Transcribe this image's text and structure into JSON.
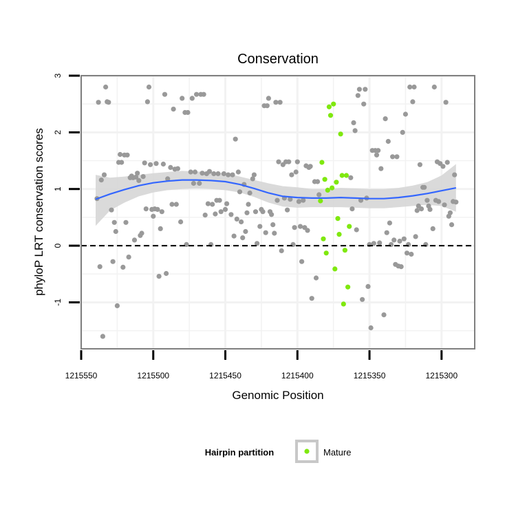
{
  "chart_data": {
    "type": "scatter",
    "title": "Conservation",
    "xlabel": "Genomic Position",
    "ylabel": "phyloP LRT conservation scores",
    "xlim": [
      1215550,
      1215277
    ],
    "x_reversed": true,
    "ylim": [
      -1.82,
      3.0
    ],
    "x_ticks": [
      1215550,
      1215500,
      1215450,
      1215400,
      1215350,
      1215300
    ],
    "x_tick_labels": [
      "1215550",
      "1215500",
      "1215450",
      "1215400",
      "1215350",
      "1215300"
    ],
    "y_ticks": [
      -1,
      0,
      1,
      2,
      3
    ],
    "y_tick_labels": [
      "-1",
      "0",
      "1",
      "2",
      "3"
    ],
    "grid": true,
    "reference_line": {
      "y": 0,
      "style": "dashed",
      "color": "#000000"
    },
    "colors": {
      "other": "#999999",
      "mature": "#7FE80E",
      "smooth": "#3366FF",
      "band": "#D6D6D6",
      "panel_border": "#7F7F7F",
      "grid": "#F2F2F2"
    },
    "legend": {
      "title": "Hairpin partition",
      "position": "bottom",
      "entries": [
        {
          "label": "Mature",
          "color": "#7FE80E"
        }
      ]
    },
    "smooth_fit": {
      "x": [
        1215540,
        1215530,
        1215520,
        1215510,
        1215500,
        1215490,
        1215480,
        1215470,
        1215460,
        1215450,
        1215440,
        1215430,
        1215420,
        1215410,
        1215400,
        1215390,
        1215380,
        1215370,
        1215360,
        1215350,
        1215340,
        1215330,
        1215320,
        1215310,
        1215300,
        1215290
      ],
      "y": [
        0.82,
        0.91,
        0.99,
        1.06,
        1.11,
        1.14,
        1.16,
        1.16,
        1.15,
        1.13,
        1.08,
        1.01,
        0.93,
        0.87,
        0.85,
        0.84,
        0.84,
        0.85,
        0.84,
        0.83,
        0.83,
        0.85,
        0.88,
        0.92,
        0.97,
        1.02
      ],
      "lower": [
        0.35,
        0.62,
        0.76,
        0.87,
        0.94,
        0.98,
        1.0,
        1.01,
        1.0,
        0.98,
        0.94,
        0.86,
        0.76,
        0.69,
        0.67,
        0.68,
        0.68,
        0.68,
        0.67,
        0.66,
        0.66,
        0.68,
        0.7,
        0.72,
        0.7,
        0.6
      ],
      "upper": [
        1.25,
        1.2,
        1.22,
        1.25,
        1.28,
        1.3,
        1.32,
        1.31,
        1.3,
        1.28,
        1.22,
        1.16,
        1.1,
        1.05,
        1.03,
        1.0,
        1.0,
        1.02,
        1.01,
        1.0,
        1.0,
        1.02,
        1.06,
        1.12,
        1.24,
        1.44
      ]
    },
    "series": [
      {
        "name": "",
        "color": "#999999",
        "points": [
          [
            1215539,
            0.83
          ],
          [
            1215538,
            2.53
          ],
          [
            1215537,
            -0.37
          ],
          [
            1215536,
            1.16
          ],
          [
            1215535,
            -1.6
          ],
          [
            1215534,
            1.25
          ],
          [
            1215533,
            2.8
          ],
          [
            1215532,
            2.54
          ],
          [
            1215531,
            2.53
          ],
          [
            1215529,
            0.63
          ],
          [
            1215528,
            -0.28
          ],
          [
            1215527,
            0.41
          ],
          [
            1215526,
            0.25
          ],
          [
            1215525,
            -1.06
          ],
          [
            1215524,
            1.47
          ],
          [
            1215523,
            1.61
          ],
          [
            1215522,
            1.47
          ],
          [
            1215521,
            -0.38
          ],
          [
            1215520,
            1.6
          ],
          [
            1215519,
            0.41
          ],
          [
            1215518,
            1.6
          ],
          [
            1215517,
            -0.2
          ],
          [
            1215516,
            1.2
          ],
          [
            1215515,
            1.23
          ],
          [
            1215514,
            1.2
          ],
          [
            1215513,
            0.1
          ],
          [
            1215512,
            1.21
          ],
          [
            1215511,
            1.28
          ],
          [
            1215510,
            1.15
          ],
          [
            1215509,
            0.18
          ],
          [
            1215508,
            0.22
          ],
          [
            1215507,
            1.22
          ],
          [
            1215506,
            1.46
          ],
          [
            1215505,
            0.65
          ],
          [
            1215504,
            2.54
          ],
          [
            1215503,
            2.8
          ],
          [
            1215502,
            1.43
          ],
          [
            1215501,
            0.64
          ],
          [
            1215500,
            0.52
          ],
          [
            1215499,
            0.65
          ],
          [
            1215498,
            1.45
          ],
          [
            1215497,
            0.64
          ],
          [
            1215496,
            -0.54
          ],
          [
            1215495,
            0.3
          ],
          [
            1215494,
            0.6
          ],
          [
            1215493,
            1.44
          ],
          [
            1215492,
            2.67
          ],
          [
            1215491,
            -0.49
          ],
          [
            1215490,
            1.18
          ],
          [
            1215488,
            1.38
          ],
          [
            1215487,
            0.73
          ],
          [
            1215486,
            2.41
          ],
          [
            1215485,
            1.35
          ],
          [
            1215484,
            0.73
          ],
          [
            1215483,
            1.36
          ],
          [
            1215481,
            0.42
          ],
          [
            1215480,
            2.6
          ],
          [
            1215478,
            2.35
          ],
          [
            1215477,
            0.02
          ],
          [
            1215476,
            2.35
          ],
          [
            1215474,
            1.3
          ],
          [
            1215473,
            2.6
          ],
          [
            1215472,
            1.1
          ],
          [
            1215471,
            1.3
          ],
          [
            1215470,
            2.67
          ],
          [
            1215468,
            1.1
          ],
          [
            1215467,
            2.67
          ],
          [
            1215466,
            1.28
          ],
          [
            1215465,
            2.67
          ],
          [
            1215464,
            0.54
          ],
          [
            1215463,
            1.27
          ],
          [
            1215462,
            0.74
          ],
          [
            1215461,
            1.31
          ],
          [
            1215460,
            0.02
          ],
          [
            1215459,
            0.73
          ],
          [
            1215458,
            1.27
          ],
          [
            1215457,
            0.56
          ],
          [
            1215456,
            0.8
          ],
          [
            1215455,
            1.27
          ],
          [
            1215454,
            0.8
          ],
          [
            1215453,
            0.6
          ],
          [
            1215451,
            1.27
          ],
          [
            1215450,
            0.64
          ],
          [
            1215449,
            0.74
          ],
          [
            1215448,
            1.25
          ],
          [
            1215446,
            0.55
          ],
          [
            1215445,
            1.25
          ],
          [
            1215444,
            0.17
          ],
          [
            1215443,
            1.88
          ],
          [
            1215442,
            0.47
          ],
          [
            1215441,
            1.3
          ],
          [
            1215440,
            0.95
          ],
          [
            1215439,
            0.42
          ],
          [
            1215438,
            0.14
          ],
          [
            1215437,
            1.08
          ],
          [
            1215436,
            0.25
          ],
          [
            1215435,
            0.58
          ],
          [
            1215434,
            0.73
          ],
          [
            1215433,
            0.93
          ],
          [
            1215431,
            1.18
          ],
          [
            1215430,
            1.25
          ],
          [
            1215429,
            0.6
          ],
          [
            1215428,
            0.04
          ],
          [
            1215426,
            0.34
          ],
          [
            1215425,
            0.64
          ],
          [
            1215424,
            0.6
          ],
          [
            1215423,
            2.47
          ],
          [
            1215422,
            0.23
          ],
          [
            1215421,
            2.47
          ],
          [
            1215420,
            2.6
          ],
          [
            1215419,
            0.6
          ],
          [
            1215418,
            0.55
          ],
          [
            1215417,
            0.37
          ],
          [
            1215416,
            0.22
          ],
          [
            1215415,
            2.53
          ],
          [
            1215414,
            0.8
          ],
          [
            1215413,
            1.48
          ],
          [
            1215412,
            2.53
          ],
          [
            1215411,
            -0.09
          ],
          [
            1215410,
            1.43
          ],
          [
            1215409,
            0.84
          ],
          [
            1215408,
            1.48
          ],
          [
            1215407,
            0.63
          ],
          [
            1215406,
            1.48
          ],
          [
            1215405,
            0.82
          ],
          [
            1215404,
            1.25
          ],
          [
            1215403,
            0.02
          ],
          [
            1215402,
            0.32
          ],
          [
            1215401,
            1.3
          ],
          [
            1215400,
            1.48
          ],
          [
            1215399,
            0.78
          ],
          [
            1215398,
            0.34
          ],
          [
            1215397,
            -0.28
          ],
          [
            1215396,
            0.8
          ],
          [
            1215395,
            0.32
          ],
          [
            1215394,
            1.41
          ],
          [
            1215393,
            0.27
          ],
          [
            1215392,
            1.38
          ],
          [
            1215391,
            1.4
          ],
          [
            1215390,
            -0.93
          ],
          [
            1215388,
            1.13
          ],
          [
            1215387,
            -0.57
          ],
          [
            1215386,
            1.13
          ],
          [
            1215385,
            0.9
          ]
        ]
      },
      {
        "name": "Mature",
        "color": "#7FE80E",
        "points": [
          [
            1215384,
            0.79
          ],
          [
            1215383,
            1.47
          ],
          [
            1215382,
            0.12
          ],
          [
            1215381,
            1.17
          ],
          [
            1215380,
            -0.13
          ],
          [
            1215379,
            0.98
          ],
          [
            1215378,
            2.45
          ],
          [
            1215377,
            2.3
          ],
          [
            1215376,
            1.02
          ],
          [
            1215375,
            2.5
          ],
          [
            1215374,
            -0.41
          ],
          [
            1215373,
            1.12
          ],
          [
            1215372,
            0.48
          ],
          [
            1215371,
            0.2
          ],
          [
            1215370,
            1.97
          ],
          [
            1215369,
            1.24
          ],
          [
            1215368,
            -1.03
          ],
          [
            1215367,
            -0.08
          ],
          [
            1215366,
            1.24
          ],
          [
            1215365,
            -0.73
          ],
          [
            1215364,
            0.34
          ]
        ]
      },
      {
        "name": "",
        "color": "#999999",
        "points": [
          [
            1215363,
            1.2
          ],
          [
            1215362,
            0.65
          ],
          [
            1215361,
            2.17
          ],
          [
            1215360,
            2.03
          ],
          [
            1215359,
            0.28
          ],
          [
            1215358,
            2.65
          ],
          [
            1215357,
            2.76
          ],
          [
            1215356,
            0.8
          ],
          [
            1215355,
            -0.95
          ],
          [
            1215354,
            2.5
          ],
          [
            1215353,
            2.76
          ],
          [
            1215352,
            0.84
          ],
          [
            1215351,
            -0.72
          ],
          [
            1215350,
            0.02
          ],
          [
            1215349,
            -1.45
          ],
          [
            1215348,
            1.68
          ],
          [
            1215347,
            0.04
          ],
          [
            1215346,
            1.68
          ],
          [
            1215345,
            1.6
          ],
          [
            1215344,
            1.68
          ],
          [
            1215343,
            0.05
          ],
          [
            1215342,
            1.36
          ],
          [
            1215340,
            -1.22
          ],
          [
            1215339,
            2.24
          ],
          [
            1215338,
            0.23
          ],
          [
            1215337,
            1.84
          ],
          [
            1215336,
            0.4
          ],
          [
            1215335,
            0.02
          ],
          [
            1215334,
            1.57
          ],
          [
            1215333,
            0.1
          ],
          [
            1215332,
            -0.33
          ],
          [
            1215331,
            1.57
          ],
          [
            1215330,
            -0.36
          ],
          [
            1215329,
            0.08
          ],
          [
            1215328,
            -0.37
          ],
          [
            1215327,
            2.0
          ],
          [
            1215326,
            0.12
          ],
          [
            1215325,
            2.32
          ],
          [
            1215324,
            -0.13
          ],
          [
            1215323,
            0.02
          ],
          [
            1215322,
            2.8
          ],
          [
            1215321,
            -0.15
          ],
          [
            1215320,
            2.54
          ],
          [
            1215319,
            2.8
          ],
          [
            1215318,
            0.16
          ],
          [
            1215317,
            0.62
          ],
          [
            1215316,
            0.7
          ],
          [
            1215315,
            1.43
          ],
          [
            1215314,
            0.65
          ],
          [
            1215313,
            1.03
          ],
          [
            1215312,
            1.03
          ],
          [
            1215311,
            0.02
          ],
          [
            1215310,
            0.8
          ],
          [
            1215309,
            0.7
          ],
          [
            1215308,
            0.64
          ],
          [
            1215306,
            0.3
          ],
          [
            1215305,
            2.8
          ],
          [
            1215304,
            0.8
          ],
          [
            1215303,
            1.48
          ],
          [
            1215302,
            0.78
          ],
          [
            1215301,
            1.45
          ],
          [
            1215299,
            1.4
          ],
          [
            1215298,
            0.72
          ],
          [
            1215297,
            2.53
          ],
          [
            1215296,
            1.47
          ],
          [
            1215295,
            0.52
          ],
          [
            1215294,
            0.58
          ],
          [
            1215293,
            0.37
          ],
          [
            1215292,
            0.78
          ],
          [
            1215291,
            1.25
          ],
          [
            1215290,
            0.77
          ]
        ]
      }
    ]
  }
}
